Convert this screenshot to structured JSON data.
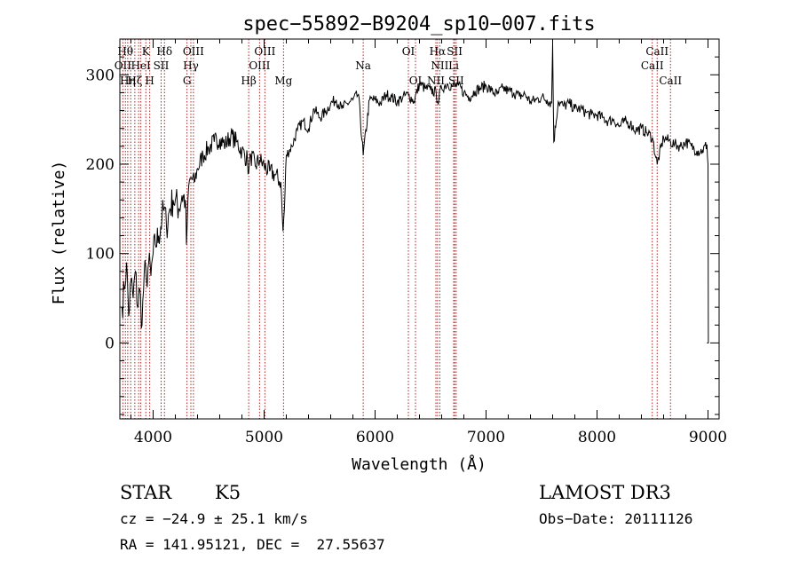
{
  "chart_data": {
    "type": "line",
    "title": "spec−55892−B9204_sp10−007.fits",
    "xlabel": "Wavelength (Å)",
    "ylabel": "Flux (relative)",
    "xlim": [
      3700,
      9100
    ],
    "ylim": [
      -85,
      340
    ],
    "xticks": [
      4000,
      5000,
      6000,
      7000,
      8000,
      9000
    ],
    "yticks": [
      0,
      100,
      200,
      300
    ],
    "series": [
      {
        "name": "flux",
        "x": [
          3720,
          3740,
          3760,
          3780,
          3800,
          3820,
          3840,
          3860,
          3880,
          3900,
          3920,
          3940,
          3960,
          3980,
          4000,
          4020,
          4050,
          4080,
          4100,
          4120,
          4150,
          4180,
          4200,
          4230,
          4260,
          4290,
          4300,
          4320,
          4340,
          4370,
          4400,
          4450,
          4500,
          4550,
          4600,
          4650,
          4700,
          4750,
          4800,
          4850,
          4861,
          4880,
          4920,
          4960,
          5000,
          5050,
          5100,
          5150,
          5170,
          5183,
          5200,
          5250,
          5300,
          5350,
          5400,
          5450,
          5500,
          5550,
          5600,
          5650,
          5700,
          5750,
          5800,
          5850,
          5893,
          5950,
          6000,
          6050,
          6100,
          6150,
          6200,
          6250,
          6300,
          6350,
          6400,
          6450,
          6500,
          6550,
          6563,
          6600,
          6650,
          6700,
          6750,
          6800,
          6850,
          6900,
          6950,
          7000,
          7050,
          7100,
          7150,
          7200,
          7250,
          7300,
          7350,
          7400,
          7450,
          7500,
          7550,
          7590,
          7600,
          7610,
          7650,
          7700,
          7750,
          7800,
          7850,
          7900,
          7950,
          8000,
          8050,
          8100,
          8150,
          8200,
          8250,
          8300,
          8350,
          8400,
          8450,
          8498,
          8542,
          8600,
          8662,
          8700,
          8750,
          8800,
          8850,
          8900,
          8950,
          8990,
          9000,
          9003
        ],
        "values": [
          40,
          60,
          90,
          30,
          70,
          50,
          80,
          40,
          60,
          20,
          80,
          70,
          90,
          75,
          100,
          110,
          120,
          140,
          150,
          130,
          150,
          160,
          160,
          150,
          165,
          160,
          110,
          175,
          185,
          180,
          195,
          210,
          218,
          225,
          228,
          222,
          232,
          225,
          215,
          205,
          190,
          210,
          198,
          205,
          198,
          192,
          188,
          180,
          125,
          150,
          210,
          220,
          238,
          248,
          240,
          262,
          252,
          258,
          268,
          272,
          262,
          268,
          272,
          278,
          210,
          272,
          272,
          268,
          278,
          275,
          270,
          275,
          278,
          270,
          290,
          285,
          283,
          280,
          270,
          285,
          290,
          287,
          288,
          280,
          275,
          282,
          285,
          288,
          282,
          278,
          285,
          282,
          280,
          276,
          278,
          270,
          272,
          275,
          272,
          268,
          335,
          225,
          270,
          265,
          268,
          262,
          262,
          258,
          255,
          255,
          252,
          248,
          250,
          242,
          248,
          245,
          238,
          240,
          235,
          230,
          200,
          230,
          225,
          222,
          220,
          225,
          220,
          215,
          215,
          222,
          200,
          0
        ]
      }
    ],
    "lines": [
      {
        "x": 3727,
        "label": "OII",
        "row": 2
      },
      {
        "x": 3750,
        "label": "Hθ",
        "row": 1
      },
      {
        "x": 3771,
        "label": "Hη",
        "row": 3
      },
      {
        "x": 3798,
        "label": "",
        "row": 0
      },
      {
        "x": 3835,
        "label": "Hζ",
        "row": 3
      },
      {
        "x": 3869,
        "label": "",
        "row": 0
      },
      {
        "x": 3889,
        "label": "HeI",
        "row": 2
      },
      {
        "x": 3934,
        "label": "K",
        "row": 1
      },
      {
        "x": 3969,
        "label": "H",
        "row": 3
      },
      {
        "x": 4072,
        "label": "SII",
        "row": 2
      },
      {
        "x": 4102,
        "label": "Hδ",
        "row": 1
      },
      {
        "x": 4305,
        "label": "G",
        "row": 3
      },
      {
        "x": 4340,
        "label": "Hγ",
        "row": 2
      },
      {
        "x": 4363,
        "label": "OIII",
        "row": 1
      },
      {
        "x": 4861,
        "label": "Hβ",
        "row": 3
      },
      {
        "x": 4959,
        "label": "OIII",
        "row": 2
      },
      {
        "x": 5007,
        "label": "OIII",
        "row": 1
      },
      {
        "x": 5175,
        "label": "Mg",
        "row": 3
      },
      {
        "x": 5893,
        "label": "Na",
        "row": 2
      },
      {
        "x": 6300,
        "label": "OI",
        "row": 1
      },
      {
        "x": 6364,
        "label": "OI",
        "row": 3
      },
      {
        "x": 6548,
        "label": "NII",
        "row": 3
      },
      {
        "x": 6563,
        "label": "Hα",
        "row": 1
      },
      {
        "x": 6583,
        "label": "NII",
        "row": 2
      },
      {
        "x": 6708,
        "label": "Li",
        "row": 2
      },
      {
        "x": 6717,
        "label": "SII",
        "row": 1
      },
      {
        "x": 6731,
        "label": "SII",
        "row": 3
      },
      {
        "x": 8498,
        "label": "CaII",
        "row": 2
      },
      {
        "x": 8542,
        "label": "CaII",
        "row": 1
      },
      {
        "x": 8662,
        "label": "CaII",
        "row": 3
      }
    ]
  },
  "footer": {
    "class": "STAR",
    "subclass": "K5",
    "survey": "LAMOST DR3",
    "cz": "cz = −24.9 ± 25.1 km/s",
    "obsdate": "Obs−Date: 20111126",
    "radec": "RA = 141.95121, DEC =  27.55637"
  }
}
